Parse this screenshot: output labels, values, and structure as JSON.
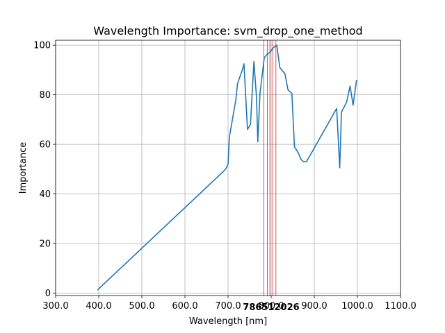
{
  "chart_data": {
    "type": "line",
    "title": "Wavelength Importance: svm_drop_one_method",
    "xlabel": "Wavelength [nm]",
    "ylabel": "Importance",
    "xlim": [
      300,
      1100
    ],
    "ylim": [
      -1,
      102
    ],
    "xticks": [
      300,
      400,
      500,
      600,
      700,
      800,
      900,
      1000,
      1100
    ],
    "xtick_labels": [
      "300.0",
      "400.0",
      "500.0",
      "600.0",
      "700.0",
      "800.0",
      "900.0",
      "1000.0",
      "1100.0"
    ],
    "yticks": [
      0,
      20,
      40,
      60,
      80,
      100
    ],
    "ytick_labels": [
      "0",
      "20",
      "40",
      "60",
      "80",
      "100"
    ],
    "grid": true,
    "line_color": "#1f77b4",
    "marker_color": "#d62728",
    "series": [
      {
        "x": [
          397,
          690,
          695,
          700,
          703,
          718,
          722,
          733,
          737,
          745,
          752,
          760,
          766,
          769,
          774,
          784,
          789,
          798,
          804,
          813,
          820,
          827,
          832,
          839,
          848,
          854,
          863,
          869,
          875,
          882,
          952,
          959,
          963,
          975,
          983,
          990,
          998
        ],
        "y": [
          1.2,
          49.2,
          50.2,
          52,
          63,
          78,
          84.5,
          90,
          92.5,
          66,
          68,
          93.5,
          79,
          61,
          80.5,
          95,
          96,
          97.3,
          98.8,
          100,
          91,
          89.5,
          88.5,
          82,
          80.5,
          59,
          56.5,
          54,
          53,
          53,
          74.5,
          50.5,
          73,
          77,
          83.5,
          75.8,
          86
        ]
      }
    ],
    "markers": {
      "x": [
        783,
        791,
        797,
        804,
        811
      ],
      "labels": [
        "783",
        "791",
        "797",
        "804",
        "811"
      ],
      "overprinted_text": "786512026"
    }
  }
}
